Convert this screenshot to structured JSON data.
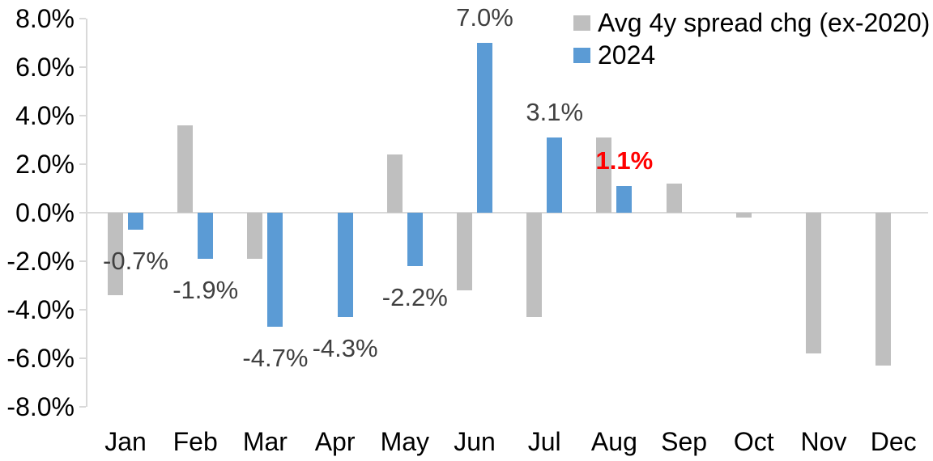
{
  "chart_data": {
    "type": "bar",
    "title": "",
    "categories": [
      "Jan",
      "Feb",
      "Mar",
      "Apr",
      "May",
      "Jun",
      "Jul",
      "Aug",
      "Sep",
      "Oct",
      "Nov",
      "Dec"
    ],
    "series": [
      {
        "name": "Avg 4y spread chg (ex-2020)",
        "color": "#BFBFBF",
        "values": [
          -3.4,
          3.6,
          -1.9,
          0.0,
          2.4,
          -3.2,
          -4.3,
          3.1,
          1.2,
          -0.2,
          -5.8,
          -6.3
        ]
      },
      {
        "name": "2024",
        "color": "#5B9BD5",
        "values": [
          -0.7,
          -1.9,
          -4.7,
          -4.3,
          -2.2,
          7.0,
          3.1,
          1.1,
          null,
          null,
          null,
          null
        ]
      }
    ],
    "data_labels": {
      "series": "2024",
      "color": "#404040",
      "highlight_color": "#FF0000",
      "highlight_index": 7,
      "items": [
        "-0.7%",
        "-1.9%",
        "-4.7%",
        "-4.3%",
        "-2.2%",
        "7.0%",
        "3.1%",
        "1.1%",
        null,
        null,
        null,
        null
      ]
    },
    "y_axis": {
      "min": -8,
      "max": 8,
      "step": 2,
      "tick_labels": [
        "8.0%",
        "6.0%",
        "4.0%",
        "2.0%",
        "0.0%",
        "-2.0%",
        "-4.0%",
        "-6.0%",
        "-8.0%"
      ]
    },
    "legend_position": "top-right",
    "grid": false,
    "axis_color": "#D9D9D9",
    "tick_text_color": "#000000"
  }
}
